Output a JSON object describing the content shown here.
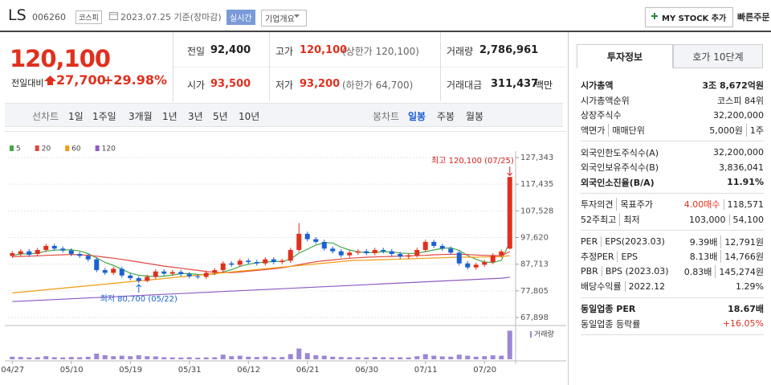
{
  "header": {
    "name": "LS",
    "code": "006260",
    "market": "코스피",
    "date": "2023.07.25 기준(장마감)",
    "realtime": "실시간",
    "overview": "기업개요",
    "mystock": "MY STOCK 추가",
    "order": "빠른주문"
  },
  "quote": {
    "price": "120,100",
    "change_label": "전일대비",
    "change": "27,700",
    "rate": "+29.98%"
  },
  "info": [
    {
      "label": "전일",
      "value": "92,400"
    },
    {
      "label": "고가",
      "value": "120,100",
      "note": "(상한가 120,100)"
    },
    {
      "label": "거래량",
      "value": "2,786,961"
    },
    {
      "label": "시가",
      "value": "93,500"
    },
    {
      "label": "저가",
      "value": "93,200",
      "note": "(하한가 64,700)"
    },
    {
      "label": "거래대금",
      "value": "311,437",
      "note": "백만"
    }
  ],
  "period_tabs": [
    "선차트",
    "1일",
    "1주일",
    "3개월",
    "1년",
    "3년",
    "5년",
    "10년"
  ],
  "candle_tabs": [
    "봉차트",
    "일봉",
    "주봉",
    "월봉"
  ],
  "side": {
    "tabs": [
      "투자정보",
      "호가 10단계"
    ],
    "groups": [
      [
        {
          "label": [
            "시가총액"
          ],
          "value": [
            "3조 8,672억원"
          ]
        },
        {
          "label": [
            "시가총액순위"
          ],
          "value": [
            "코스피 84위"
          ]
        },
        {
          "label": [
            "상장주식수"
          ],
          "value": [
            "32,200,000"
          ]
        },
        {
          "label": [
            "액면가",
            "매매단위"
          ],
          "value": [
            "5,000원",
            "1주"
          ]
        }
      ],
      [
        {
          "label": [
            "외국인한도주식수(A)"
          ],
          "value": [
            "32,200,000"
          ]
        },
        {
          "label": [
            "외국인보유주식수(B)"
          ],
          "value": [
            "3,836,041"
          ]
        },
        {
          "label": [
            "외국인소진율(B/A)"
          ],
          "value": [
            "11.91%"
          ]
        }
      ],
      [
        {
          "label": [
            "투자의견",
            "목표주가"
          ],
          "value": [
            "4.00매수",
            "118,571"
          ]
        },
        {
          "label": [
            "52주최고",
            "최저"
          ],
          "value": [
            "103,000",
            "54,100"
          ]
        }
      ],
      [
        {
          "label": [
            "PER",
            "EPS(2023.03)"
          ],
          "value": [
            "9.39배",
            "12,791원"
          ]
        },
        {
          "label": [
            "추정PER",
            "EPS"
          ],
          "value": [
            "8.13배",
            "14,766원"
          ]
        },
        {
          "label": [
            "PBR",
            "BPS (2023.03)"
          ],
          "value": [
            "0.83배",
            "145,274원"
          ]
        },
        {
          "label": [
            "배당수익률",
            "2022.12"
          ],
          "value": [
            "1.29%"
          ]
        }
      ],
      [
        {
          "label": [
            "동일업종 PER"
          ],
          "value": [
            "18.67배"
          ]
        },
        {
          "label": [
            "동일업종 등락률"
          ],
          "value": [
            "+16.05%"
          ]
        }
      ]
    ]
  },
  "chart_data": {
    "type": "candlestick",
    "categories": [
      "04/27",
      null,
      null,
      null,
      null,
      null,
      null,
      "05/10",
      null,
      null,
      null,
      null,
      null,
      null,
      "05/19",
      null,
      null,
      null,
      null,
      null,
      null,
      "05/31",
      null,
      null,
      null,
      null,
      null,
      null,
      "06/12",
      null,
      null,
      null,
      null,
      null,
      null,
      "06/21",
      null,
      null,
      null,
      null,
      null,
      null,
      "06/30",
      null,
      null,
      null,
      null,
      null,
      null,
      "07/11",
      null,
      null,
      null,
      null,
      null,
      null,
      "07/20",
      null,
      null,
      null
    ],
    "opens": [
      90800,
      91500,
      92500,
      91500,
      93000,
      94500,
      93500,
      92800,
      91500,
      90800,
      89500,
      85500,
      84500,
      86000,
      83500,
      82500,
      81500,
      83000,
      85000,
      84200,
      84800,
      84000,
      83200,
      83000,
      84500,
      85500,
      88000,
      87500,
      89000,
      88500,
      88000,
      89500,
      88500,
      89000,
      93000,
      99000,
      97000,
      96000,
      93500,
      92500,
      91000,
      92000,
      92500,
      91800,
      93000,
      92500,
      91500,
      90500,
      91000,
      93000,
      96000,
      94500,
      93500,
      92000,
      88000,
      86500,
      87500,
      88500,
      91000,
      93500
    ],
    "highs": [
      92600,
      93300,
      93300,
      93800,
      95300,
      95300,
      94300,
      93600,
      92300,
      91600,
      90300,
      86300,
      86800,
      86800,
      84300,
      83300,
      83800,
      85800,
      85800,
      85600,
      85600,
      84800,
      84000,
      85300,
      86300,
      88800,
      88800,
      89800,
      89800,
      89300,
      90300,
      90300,
      89800,
      93800,
      103000,
      99800,
      97800,
      96800,
      94300,
      93300,
      92800,
      93300,
      93300,
      93800,
      93800,
      93300,
      92300,
      91800,
      93800,
      96800,
      96800,
      95300,
      94300,
      92800,
      88800,
      88300,
      89300,
      91800,
      93200,
      120100
    ],
    "lows": [
      90000,
      90700,
      90400,
      90700,
      92200,
      92700,
      92000,
      90700,
      90000,
      88700,
      84700,
      83700,
      83700,
      82700,
      81700,
      80700,
      81000,
      82200,
      83400,
      83400,
      83200,
      82400,
      82200,
      82200,
      83700,
      84700,
      86700,
      86700,
      87700,
      87200,
      87200,
      87700,
      87700,
      88200,
      92200,
      96200,
      95200,
      92700,
      91700,
      90200,
      90200,
      91200,
      91000,
      91000,
      91700,
      90700,
      89700,
      89700,
      90200,
      92200,
      93700,
      92700,
      91200,
      87200,
      85700,
      85700,
      86700,
      87700,
      90200,
      93200
    ],
    "closes": [
      91800,
      92500,
      91200,
      93000,
      94500,
      93500,
      92800,
      91500,
      90800,
      89500,
      85500,
      84500,
      86000,
      83500,
      82500,
      81500,
      83000,
      85000,
      84200,
      84800,
      84000,
      83200,
      83000,
      84500,
      85500,
      88000,
      87500,
      89000,
      88500,
      88000,
      89500,
      88500,
      89000,
      93000,
      99000,
      97000,
      96000,
      93500,
      92500,
      91000,
      92000,
      92500,
      91800,
      93000,
      92500,
      91500,
      90500,
      91000,
      93000,
      96000,
      94500,
      93500,
      92000,
      88000,
      86500,
      87500,
      88500,
      91000,
      92400,
      120100
    ],
    "volumes": [
      250000,
      220000,
      180000,
      200000,
      300000,
      200000,
      180000,
      220000,
      200000,
      240000,
      550000,
      400000,
      300000,
      350000,
      300000,
      400000,
      300000,
      280000,
      200000,
      180000,
      170000,
      200000,
      160000,
      180000,
      200000,
      450000,
      300000,
      350000,
      250000,
      220000,
      280000,
      200000,
      220000,
      500000,
      1050000,
      600000,
      400000,
      350000,
      250000,
      220000,
      200000,
      200000,
      180000,
      220000,
      200000,
      180000,
      200000,
      180000,
      300000,
      500000,
      350000,
      280000,
      250000,
      450000,
      350000,
      250000,
      300000,
      380000,
      350000,
      2786961
    ],
    "volume_lim": [
      0,
      2900000
    ],
    "volume_label": "거래량",
    "volume_color": "#9d86d6",
    "up_color": "#e0301e",
    "down_color": "#1b61d1",
    "ma": [
      {
        "name": "5",
        "color": "#45a84a",
        "values": [
          91000,
          91500,
          91600,
          91800,
          92600,
          92940,
          93000,
          93060,
          92620,
          91620,
          90020,
          88360,
          87260,
          85800,
          84400,
          83600,
          83300,
          83100,
          83240,
          83700,
          84200,
          84240,
          83840,
          83900,
          84040,
          84840,
          85700,
          86900,
          87700,
          88200,
          88500,
          88700,
          88700,
          89600,
          91800,
          93300,
          94800,
          95700,
          95600,
          94000,
          93000,
          92300,
          91960,
          92060,
          92360,
          92260,
          91860,
          91700,
          91700,
          92400,
          93000,
          93600,
          93800,
          92800,
          90900,
          89500,
          88500,
          88300,
          89180,
          95900
        ]
      },
      {
        "name": "20",
        "color": "#e2463f",
        "values": [
          90500,
          90600,
          90700,
          90800,
          91000,
          91100,
          91200,
          91300,
          91200,
          91000,
          90700,
          90300,
          89900,
          89500,
          89000,
          88500,
          88000,
          87500,
          87000,
          86600,
          86200,
          85800,
          85400,
          85000,
          84700,
          84600,
          84600,
          84800,
          85100,
          85400,
          85700,
          86000,
          86400,
          86900,
          87500,
          88100,
          88600,
          89000,
          89300,
          89600,
          89900,
          90100,
          90300,
          90400,
          90500,
          90600,
          90700,
          90800,
          90900,
          91000,
          91200,
          91300,
          91400,
          91400,
          91300,
          91100,
          91000,
          90900,
          90900,
          92400
        ]
      },
      {
        "name": "60",
        "color": "#f39c12",
        "values": [
          77000,
          77300,
          77600,
          77900,
          78200,
          78500,
          78800,
          79100,
          79400,
          79700,
          80000,
          80300,
          80600,
          80900,
          81200,
          81500,
          81800,
          82100,
          82400,
          82700,
          83000,
          83300,
          83600,
          83900,
          84200,
          84500,
          84800,
          85100,
          85400,
          85700,
          86000,
          86300,
          86600,
          86900,
          87200,
          87500,
          87800,
          88100,
          88400,
          88700,
          89000,
          89100,
          89200,
          89300,
          89400,
          89500,
          89600,
          89700,
          89800,
          89900,
          90000,
          90100,
          90200,
          90300,
          90300,
          90300,
          90400,
          90400,
          90500,
          90900
        ]
      },
      {
        "name": "120",
        "color": "#8e5bc2",
        "values": [
          73800,
          73950,
          74100,
          74250,
          74400,
          74550,
          74700,
          74850,
          75000,
          75150,
          75300,
          75450,
          75600,
          75750,
          75900,
          76050,
          76200,
          76350,
          76500,
          76650,
          76800,
          76950,
          77100,
          77250,
          77400,
          77550,
          77700,
          77850,
          78000,
          78150,
          78300,
          78450,
          78600,
          78750,
          78900,
          79050,
          79200,
          79350,
          79500,
          79650,
          79800,
          79950,
          80100,
          80250,
          80400,
          80550,
          80700,
          80850,
          81000,
          81150,
          81300,
          81450,
          81600,
          81750,
          81900,
          82050,
          82200,
          82350,
          82500,
          82900
        ]
      }
    ],
    "ylim": [
      67898,
      127343
    ],
    "yticks": [
      {
        "value": 127343,
        "label": "127,343"
      },
      {
        "value": 117435,
        "label": "117,435"
      },
      {
        "value": 107528,
        "label": "107,528"
      },
      {
        "value": 97620,
        "label": "97,620"
      },
      {
        "value": 87713,
        "label": "87,713"
      },
      {
        "value": 77805,
        "label": "77,805"
      },
      {
        "value": 67898,
        "label": "67,898"
      }
    ],
    "grid": true,
    "annotations": {
      "high": "최고 120,100 (07/25)",
      "low": "최저 80,700 (05/22)"
    }
  }
}
